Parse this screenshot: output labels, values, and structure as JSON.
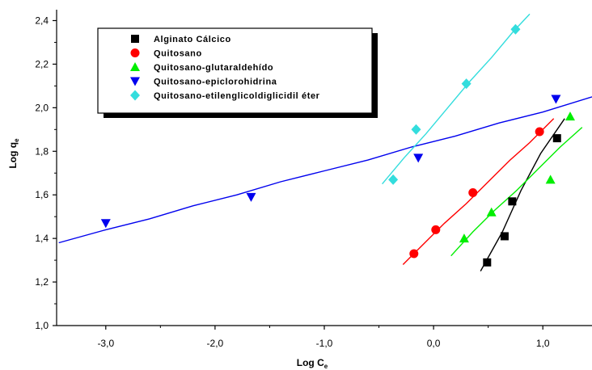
{
  "chart_data": {
    "type": "scatter",
    "xlabel": "Log C",
    "xlabel_sub": "e",
    "ylabel": "Log q",
    "ylabel_sub": "e",
    "xlim": [
      -3.45,
      1.45
    ],
    "ylim": [
      1.0,
      2.45
    ],
    "xticks": [
      -3.0,
      -2.0,
      -1.0,
      0.0,
      1.0
    ],
    "xtick_labels": [
      "-3,0",
      "-2,0",
      "-1,0",
      "0,0",
      "1,0"
    ],
    "yticks": [
      1.0,
      1.2,
      1.4,
      1.6,
      1.8,
      2.0,
      2.2,
      2.4
    ],
    "ytick_labels": [
      "1,0",
      "1,2",
      "1,4",
      "1,6",
      "1,8",
      "2,0",
      "2,2",
      "2,4"
    ],
    "legend_position": "top-left",
    "series": [
      {
        "name": "Alginato Cálcico",
        "marker": "square",
        "color": "#000000",
        "points": [
          [
            0.49,
            1.29
          ],
          [
            0.65,
            1.41
          ],
          [
            0.72,
            1.57
          ],
          [
            1.13,
            1.86
          ]
        ],
        "fit": [
          [
            0.43,
            1.25
          ],
          [
            0.63,
            1.43
          ],
          [
            0.8,
            1.62
          ],
          [
            0.98,
            1.79
          ],
          [
            1.2,
            1.95
          ]
        ]
      },
      {
        "name": "Quitosano",
        "marker": "circle",
        "color": "#ff0000",
        "points": [
          [
            -0.18,
            1.33
          ],
          [
            0.02,
            1.44
          ],
          [
            0.36,
            1.61
          ],
          [
            0.97,
            1.89
          ]
        ],
        "fit": [
          [
            -0.28,
            1.28
          ],
          [
            -0.08,
            1.38
          ],
          [
            0.1,
            1.47
          ],
          [
            0.3,
            1.56
          ],
          [
            0.5,
            1.66
          ],
          [
            0.7,
            1.76
          ],
          [
            0.88,
            1.84
          ],
          [
            1.1,
            1.95
          ]
        ]
      },
      {
        "name": "Quitosano-glutaraldehído",
        "marker": "triangle-up",
        "color": "#00ee00",
        "points": [
          [
            0.28,
            1.4
          ],
          [
            0.53,
            1.52
          ],
          [
            1.07,
            1.67
          ],
          [
            1.25,
            1.96
          ]
        ],
        "fit": [
          [
            0.16,
            1.32
          ],
          [
            0.36,
            1.43
          ],
          [
            0.56,
            1.53
          ],
          [
            0.76,
            1.62
          ],
          [
            0.96,
            1.72
          ],
          [
            1.16,
            1.82
          ],
          [
            1.36,
            1.91
          ]
        ]
      },
      {
        "name": "Quitosano-epiclorohidrina",
        "marker": "triangle-down",
        "color": "#0000ee",
        "points": [
          [
            -3.0,
            1.47
          ],
          [
            -1.67,
            1.59
          ],
          [
            -0.14,
            1.77
          ],
          [
            1.12,
            2.04
          ]
        ],
        "fit": [
          [
            -3.43,
            1.38
          ],
          [
            -3.0,
            1.44
          ],
          [
            -2.6,
            1.49
          ],
          [
            -2.2,
            1.55
          ],
          [
            -1.8,
            1.6
          ],
          [
            -1.4,
            1.66
          ],
          [
            -1.0,
            1.71
          ],
          [
            -0.6,
            1.76
          ],
          [
            -0.2,
            1.82
          ],
          [
            0.2,
            1.87
          ],
          [
            0.6,
            1.93
          ],
          [
            1.0,
            1.98
          ],
          [
            1.45,
            2.05
          ]
        ]
      },
      {
        "name": "Quitosano-etilenglicoldiglicidil éter",
        "marker": "diamond",
        "color": "#33dddd",
        "points": [
          [
            -0.37,
            1.67
          ],
          [
            -0.16,
            1.9
          ],
          [
            0.3,
            2.11
          ],
          [
            0.75,
            2.36
          ]
        ],
        "fit": [
          [
            -0.47,
            1.65
          ],
          [
            -0.27,
            1.77
          ],
          [
            -0.07,
            1.88
          ],
          [
            0.13,
            2.0
          ],
          [
            0.33,
            2.12
          ],
          [
            0.53,
            2.23
          ],
          [
            0.73,
            2.35
          ],
          [
            0.88,
            2.43
          ]
        ]
      }
    ]
  }
}
